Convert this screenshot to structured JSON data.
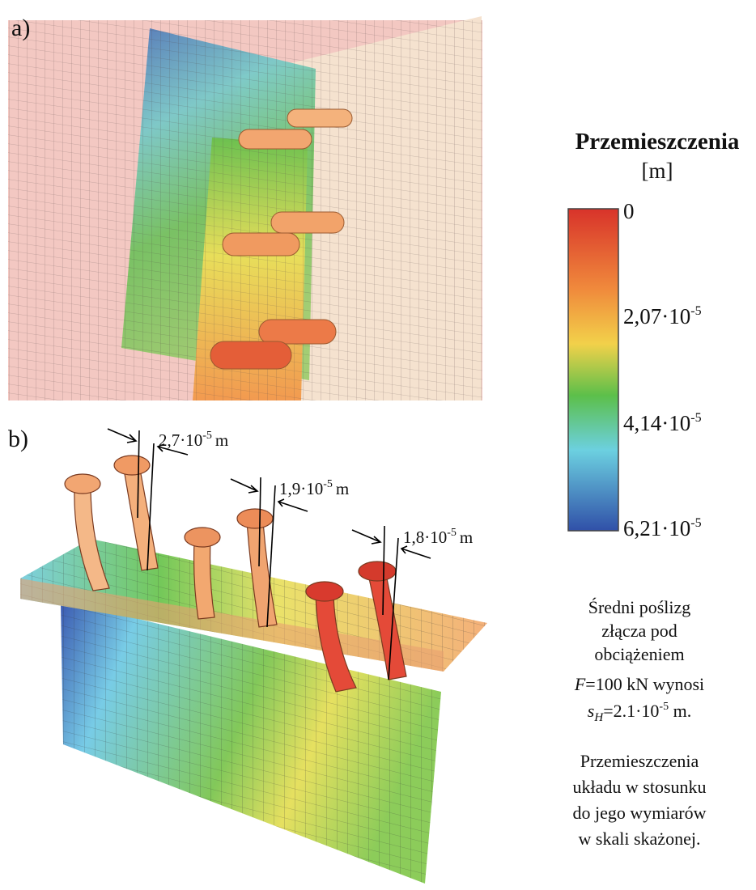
{
  "panels": {
    "a": {
      "label": "a)"
    },
    "b": {
      "label": "b)",
      "annotations": [
        {
          "mantissa": "2,7·10",
          "exponent": "-5",
          "unit": "m"
        },
        {
          "mantissa": "1,9·10",
          "exponent": "-5",
          "unit": "m"
        },
        {
          "mantissa": "1,8·10",
          "exponent": "-5",
          "unit": "m"
        }
      ]
    }
  },
  "legend": {
    "title": "Przemieszczenia",
    "unit": "[m]",
    "labels": [
      {
        "mantissa": "0",
        "exponent": ""
      },
      {
        "mantissa": "2,07·10",
        "exponent": "-5"
      },
      {
        "mantissa": "4,14·10",
        "exponent": "-5"
      },
      {
        "mantissa": "6,21·10",
        "exponent": "-5"
      }
    ]
  },
  "captions": {
    "slip": {
      "line1": "Średni poślizg",
      "line2": "złącza pod",
      "line3": "obciążeniem",
      "force_symbol": "F",
      "force_text": "=100 kN wynosi",
      "slip_symbol": "s",
      "slip_subscript": "H",
      "slip_mantissa": "=2.1·10",
      "slip_exponent": "-5",
      "slip_unit": " m."
    },
    "scale": {
      "line1": "Przemieszczenia",
      "line2": "układu w stosunku",
      "line3": "do jego wymiarów",
      "line4": "w skali skażonej."
    }
  }
}
